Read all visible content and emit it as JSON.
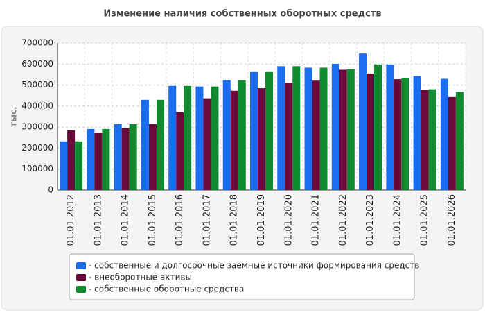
{
  "chart_data": {
    "type": "bar",
    "title": "Изменение наличия собственных оборотных средств",
    "y_label": "тыс.",
    "categories": [
      "01.01.2012",
      "01.01.2013",
      "01.01.2014",
      "01.01.2015",
      "01.01.2016",
      "01.01.2017",
      "01.01.2018",
      "01.01.2019",
      "01.01.2020",
      "01.01.2021",
      "01.01.2022",
      "01.01.2023",
      "01.01.2024",
      "01.01.2025",
      "01.01.2026"
    ],
    "series": [
      {
        "name": "- собственные и долгосрочные заемные источники формирования средств",
        "color": "#1a6cf0",
        "values": [
          232000,
          291000,
          314000,
          430000,
          496000,
          493000,
          523000,
          562000,
          590000,
          583000,
          601000,
          650000,
          598000,
          543000,
          530000
        ]
      },
      {
        "name": "- внеоборотные активы",
        "color": "#6b0a3a",
        "values": [
          285000,
          274000,
          294000,
          315000,
          370000,
          437000,
          473000,
          485000,
          510000,
          521000,
          573000,
          555000,
          528000,
          477000,
          443000
        ]
      },
      {
        "name": "- собственные оборотные средства",
        "color": "#0f8a2e",
        "values": [
          232000,
          291000,
          314000,
          430000,
          496000,
          493000,
          523000,
          562000,
          590000,
          583000,
          576000,
          598000,
          535000,
          480000,
          467000
        ]
      }
    ],
    "ylim": [
      0,
      700000
    ],
    "yticks": [
      0,
      100000,
      200000,
      300000,
      400000,
      500000,
      600000,
      700000
    ],
    "grid": true
  }
}
